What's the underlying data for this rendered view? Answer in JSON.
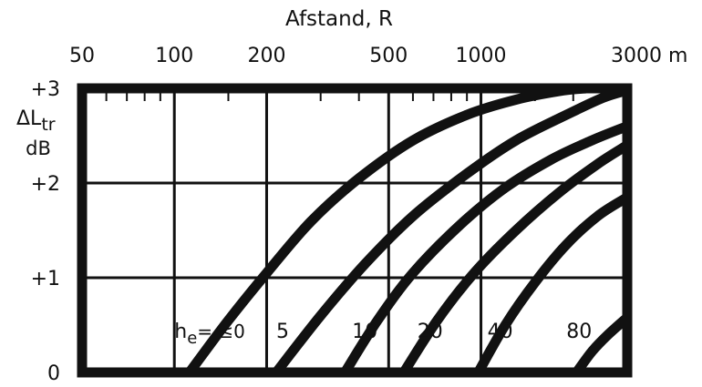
{
  "chart_data": {
    "type": "line",
    "title": "",
    "xlabel": "Afstand, R",
    "ylabel_lines": [
      "ΔL",
      "tr",
      "dB"
    ],
    "x_scale": "log",
    "x_unit": "m",
    "xlim": [
      50,
      3000
    ],
    "ylim": [
      0,
      3
    ],
    "x_ticks": [
      {
        "value": 50,
        "label": "50"
      },
      {
        "value": 100,
        "label": "100"
      },
      {
        "value": 200,
        "label": "200"
      },
      {
        "value": 500,
        "label": "500"
      },
      {
        "value": 1000,
        "label": "1000"
      },
      {
        "value": 3000,
        "label": "3000 m"
      }
    ],
    "y_ticks": [
      {
        "value": 0,
        "label": "0"
      },
      {
        "value": 1,
        "label": "+1"
      },
      {
        "value": 2,
        "label": "+2"
      },
      {
        "value": 3,
        "label": "+3"
      }
    ],
    "series_label_prefix": "h",
    "series_label_sub": "e",
    "series_label_rel": "= ≤",
    "series": [
      {
        "name": "0",
        "x": [
          112,
          150,
          200,
          280,
          400,
          600,
          900,
          1300,
          1800,
          2200
        ],
        "y": [
          0,
          0.55,
          1.05,
          1.6,
          2.05,
          2.45,
          2.72,
          2.88,
          2.97,
          3.0
        ]
      },
      {
        "name": "5",
        "x": [
          215,
          300,
          420,
          600,
          900,
          1300,
          1900,
          2500,
          3000
        ],
        "y": [
          0,
          0.6,
          1.15,
          1.65,
          2.1,
          2.45,
          2.72,
          2.9,
          2.98
        ]
      },
      {
        "name": "10",
        "x": [
          360,
          460,
          600,
          850,
          1200,
          1700,
          2300,
          3000
        ],
        "y": [
          0,
          0.55,
          1.05,
          1.55,
          1.95,
          2.25,
          2.45,
          2.6
        ]
      },
      {
        "name": "20",
        "x": [
          560,
          720,
          950,
          1300,
          1800,
          2400,
          3000
        ],
        "y": [
          0,
          0.55,
          1.05,
          1.5,
          1.9,
          2.2,
          2.4
        ]
      },
      {
        "name": "40",
        "x": [
          980,
          1200,
          1500,
          1900,
          2400,
          3000
        ],
        "y": [
          0,
          0.5,
          0.95,
          1.35,
          1.65,
          1.85
        ]
      },
      {
        "name": "80",
        "x": [
          2050,
          2300,
          2600,
          3000
        ],
        "y": [
          0,
          0.22,
          0.4,
          0.58
        ]
      }
    ],
    "series_label_positions": [
      {
        "x": 100,
        "y": 0.45
      },
      {
        "x": 215,
        "y": 0.45
      },
      {
        "x": 380,
        "y": 0.45
      },
      {
        "x": 620,
        "y": 0.45
      },
      {
        "x": 1050,
        "y": 0.45
      },
      {
        "x": 1900,
        "y": 0.45
      }
    ],
    "grid": true,
    "legend": "none"
  }
}
